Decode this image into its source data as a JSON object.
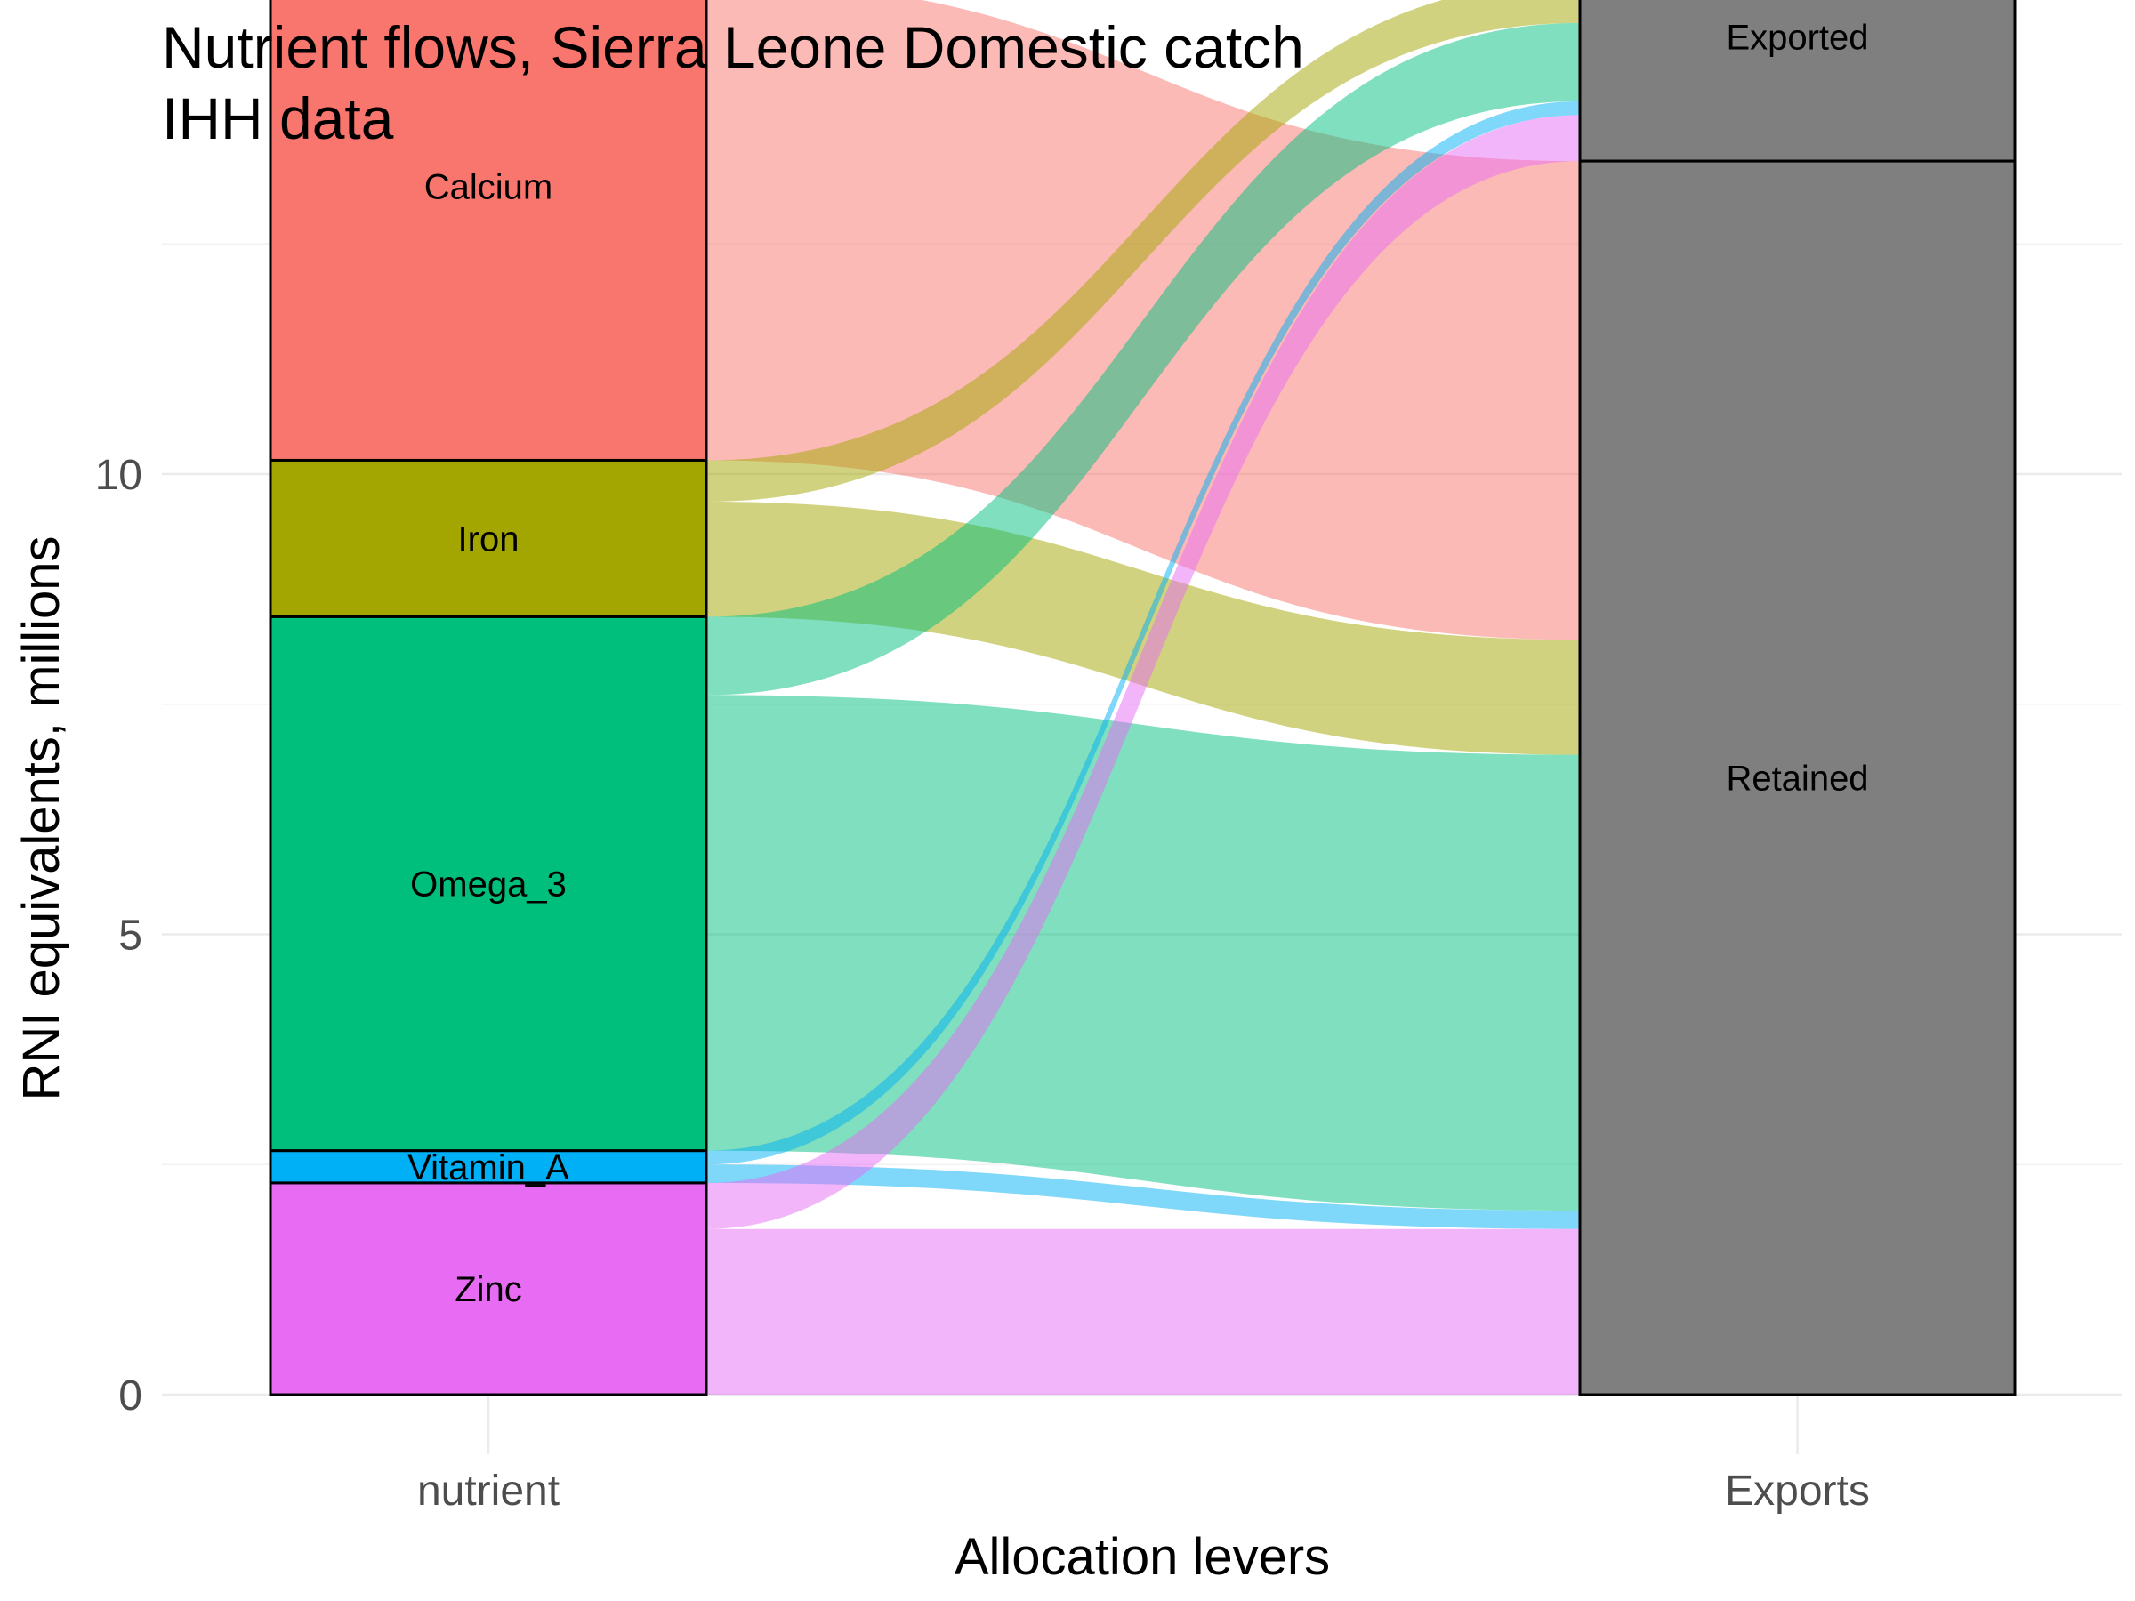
{
  "chart_data": {
    "type": "alluvial",
    "title": "Nutrient flows, Sierra Leone Domestic catch",
    "subtitle": "IHH data",
    "xlabel": "Allocation levers",
    "ylabel": "RNI equivalents, millions",
    "ylim": [
      0,
      12.6
    ],
    "yticks": [
      0,
      5,
      10
    ],
    "grid": true,
    "axes": [
      "nutrient",
      "Exports"
    ],
    "nutrients": [
      {
        "name": "Calcium",
        "color": "#F8766D",
        "retained": 5.2,
        "exported": 0.75
      },
      {
        "name": "Iron",
        "color": "#A3A500",
        "retained": 1.25,
        "exported": 0.45
      },
      {
        "name": "Omega_3",
        "color": "#00BF7D",
        "retained": 4.95,
        "exported": 0.85
      },
      {
        "name": "Vitamin_A",
        "color": "#00B0F6",
        "retained": 0.2,
        "exported": 0.15
      },
      {
        "name": "Zinc",
        "color": "#E76BF3",
        "retained": 1.8,
        "exported": 0.5
      }
    ],
    "exports_strata": [
      {
        "name": "Exported",
        "color": "#7F7F7F"
      },
      {
        "name": "Retained",
        "color": "#7F7F7F"
      }
    ]
  }
}
